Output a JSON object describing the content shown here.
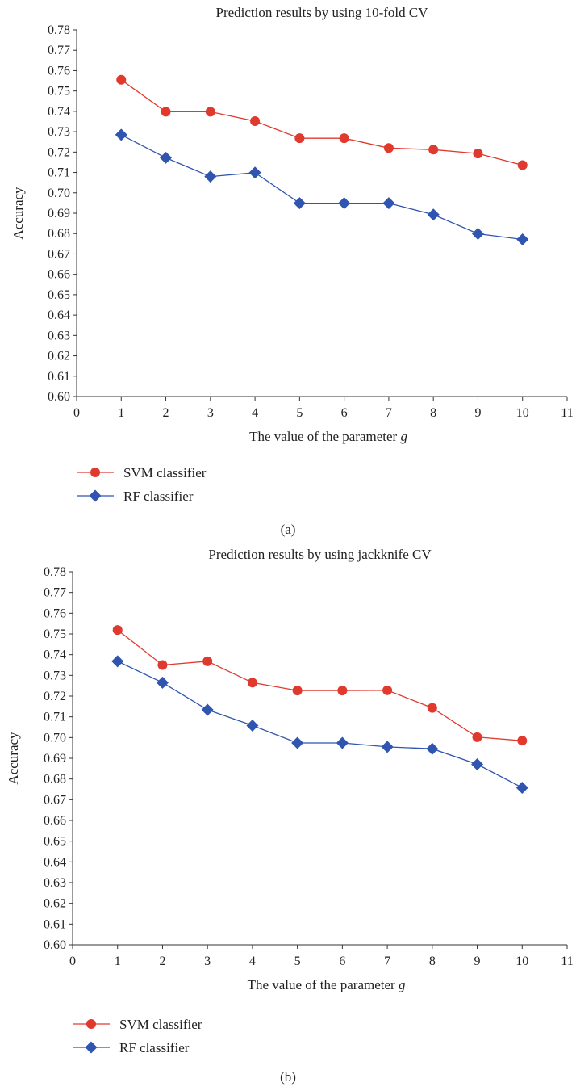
{
  "chart_data": [
    {
      "type": "line",
      "panel_label": "(a)",
      "title": "Prediction results by using 10-fold CV",
      "xlabel": "The value of the parameter ",
      "xlabel_symbol": "g",
      "ylabel": "Accuracy",
      "xlim": [
        0,
        11
      ],
      "ylim": [
        0.6,
        0.78
      ],
      "x_ticks": [
        "0",
        "1",
        "2",
        "3",
        "4",
        "5",
        "6",
        "7",
        "8",
        "9",
        "10",
        "11"
      ],
      "y_ticks": [
        "0.60",
        "0.61",
        "0.62",
        "0.63",
        "0.64",
        "0.65",
        "0.66",
        "0.67",
        "0.68",
        "0.69",
        "0.70",
        "0.71",
        "0.72",
        "0.73",
        "0.74",
        "0.75",
        "0.76",
        "0.77",
        "0.78"
      ],
      "grid": false,
      "legend_position": "bottom-left",
      "x": [
        1,
        2,
        3,
        4,
        5,
        6,
        7,
        8,
        9,
        10
      ],
      "series": [
        {
          "name": "SVM classifier",
          "marker": "circle",
          "color": "#e03a2e",
          "values": [
            0.7555,
            0.7398,
            0.7398,
            0.7352,
            0.7268,
            0.7268,
            0.722,
            0.7212,
            0.7193,
            0.7136
          ]
        },
        {
          "name": "RF classifier",
          "marker": "diamond",
          "color": "#2f55b0",
          "values": [
            0.7285,
            0.7172,
            0.708,
            0.7099,
            0.6949,
            0.6949,
            0.6949,
            0.6893,
            0.6799,
            0.6771
          ]
        }
      ]
    },
    {
      "type": "line",
      "panel_label": "(b)",
      "title": "Prediction results by using jackknife CV",
      "xlabel": "The value of the parameter ",
      "xlabel_symbol": "g",
      "ylabel": "Accuracy",
      "xlim": [
        0,
        11
      ],
      "ylim": [
        0.6,
        0.78
      ],
      "x_ticks": [
        "0",
        "1",
        "2",
        "3",
        "4",
        "5",
        "6",
        "7",
        "8",
        "9",
        "10",
        "11"
      ],
      "y_ticks": [
        "0.60",
        "0.61",
        "0.62",
        "0.63",
        "0.64",
        "0.65",
        "0.66",
        "0.67",
        "0.68",
        "0.69",
        "0.70",
        "0.71",
        "0.72",
        "0.73",
        "0.74",
        "0.75",
        "0.76",
        "0.77",
        "0.78"
      ],
      "grid": false,
      "legend_position": "bottom-left",
      "x": [
        1,
        2,
        3,
        4,
        5,
        6,
        7,
        8,
        9,
        10
      ],
      "series": [
        {
          "name": "SVM classifier",
          "marker": "circle",
          "color": "#e03a2e",
          "values": [
            0.7519,
            0.735,
            0.7368,
            0.7265,
            0.7227,
            0.7227,
            0.7228,
            0.7143,
            0.7002,
            0.6985
          ]
        },
        {
          "name": "RF classifier",
          "marker": "diamond",
          "color": "#2f55b0",
          "values": [
            0.7368,
            0.7265,
            0.7134,
            0.7058,
            0.6974,
            0.6974,
            0.6955,
            0.6946,
            0.6871,
            0.6758
          ]
        }
      ]
    }
  ]
}
